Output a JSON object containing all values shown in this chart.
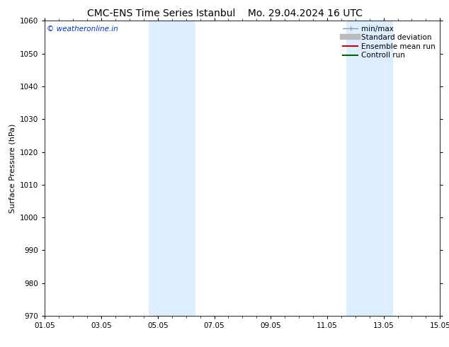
{
  "title_left": "CMC-ENS Time Series Istanbul",
  "title_right": "Mo. 29.04.2024 16 UTC",
  "ylabel": "Surface Pressure (hPa)",
  "ylim": [
    970,
    1060
  ],
  "yticks": [
    970,
    980,
    990,
    1000,
    1010,
    1020,
    1030,
    1040,
    1050,
    1060
  ],
  "xlim_days": [
    0,
    14
  ],
  "xtick_labels": [
    "01.05",
    "03.05",
    "05.05",
    "07.05",
    "09.05",
    "11.05",
    "13.05",
    "15.05"
  ],
  "xtick_positions": [
    0,
    2,
    4,
    6,
    8,
    10,
    12,
    14
  ],
  "shaded_bands": [
    {
      "x_start": 3.67,
      "x_end": 4.67
    },
    {
      "x_start": 4.67,
      "x_end": 5.33
    },
    {
      "x_start": 10.67,
      "x_end": 11.33
    },
    {
      "x_start": 11.33,
      "x_end": 12.33
    }
  ],
  "band_color": "#ddeeff",
  "background_color": "#ffffff",
  "watermark_text": "© weatheronline.in",
  "watermark_color": "#0033cc",
  "legend_items": [
    {
      "label": "min/max",
      "color": "#999999"
    },
    {
      "label": "Standard deviation",
      "color": "#bbbbbb"
    },
    {
      "label": "Ensemble mean run",
      "color": "#cc0000"
    },
    {
      "label": "Controll run",
      "color": "#006600"
    }
  ],
  "title_fontsize": 10,
  "ylabel_fontsize": 8,
  "tick_fontsize": 7.5,
  "legend_fontsize": 7.5
}
